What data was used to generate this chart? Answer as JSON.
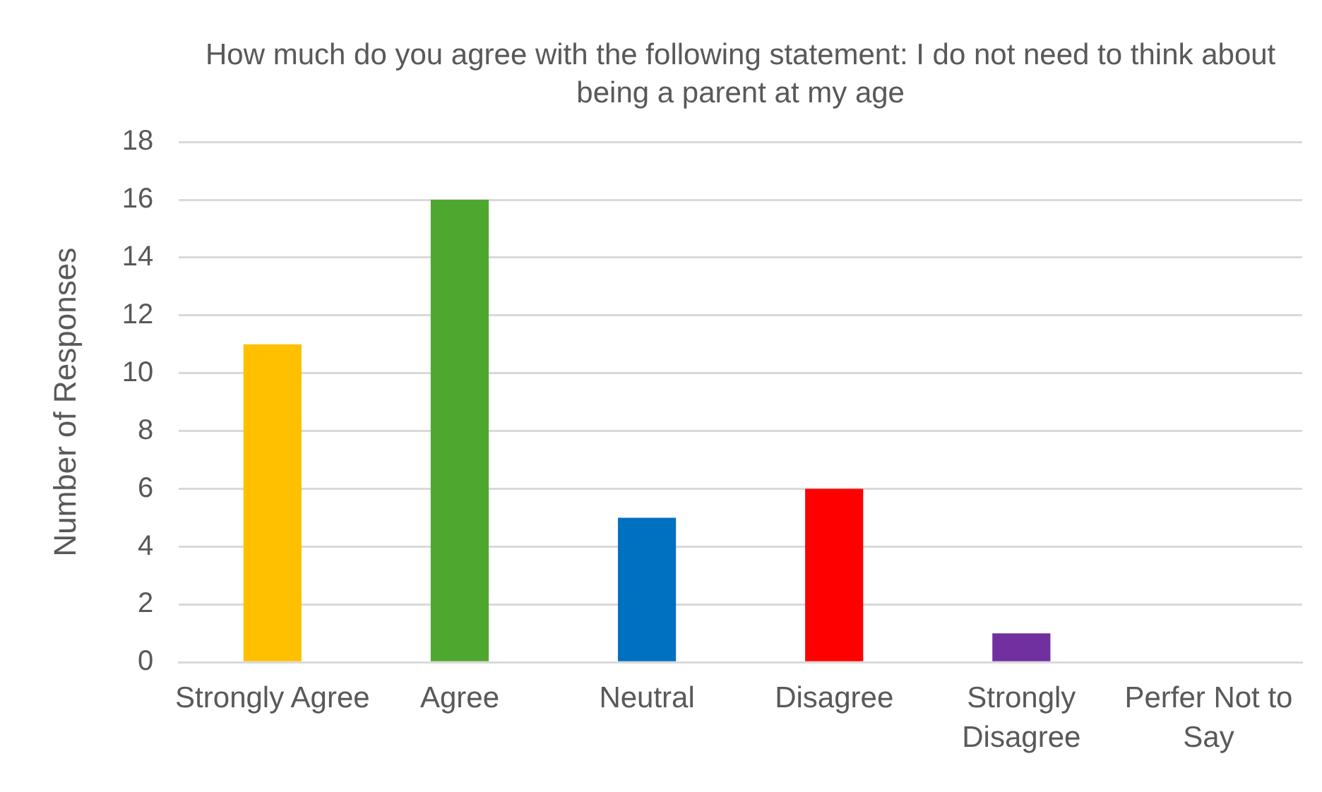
{
  "chart_data": {
    "type": "bar",
    "title": "How much do you agree with the following statement: I do not need to think about being a parent at my age",
    "ylabel": "Number of Responses",
    "categories": [
      "Strongly Agree",
      "Agree",
      "Neutral",
      "Disagree",
      "Strongly Disagree",
      "Perfer Not to Say"
    ],
    "values": [
      11,
      16,
      5,
      6,
      1,
      0
    ],
    "colors": [
      "#ffc000",
      "#4ea72e",
      "#0070c0",
      "#ff0000",
      "#7030a0",
      "#a5a5a5"
    ],
    "ylim": [
      0,
      18
    ],
    "yticks": [
      0,
      2,
      4,
      6,
      8,
      10,
      12,
      14,
      16,
      18
    ],
    "grid": "y"
  }
}
